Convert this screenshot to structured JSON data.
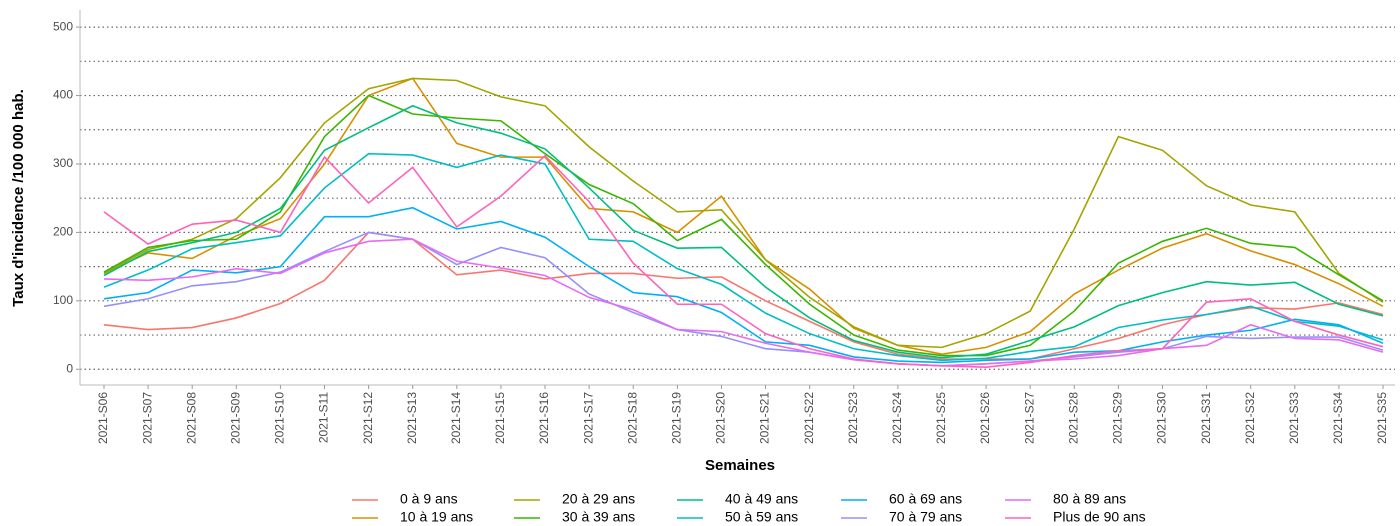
{
  "chart_data": {
    "type": "line",
    "x_label": "Semaines",
    "y_label": "Taux d'incidence /100 000 hab.",
    "categories": [
      "2021-S06",
      "2021-S07",
      "2021-S08",
      "2021-S09",
      "2021-S10",
      "2021-S11",
      "2021-S12",
      "2021-S13",
      "2021-S14",
      "2021-S15",
      "2021-S16",
      "2021-S17",
      "2021-S18",
      "2021-S19",
      "2021-S20",
      "2021-S21",
      "2021-S22",
      "2021-S23",
      "2021-S24",
      "2021-S25",
      "2021-S26",
      "2021-S27",
      "2021-S28",
      "2021-S29",
      "2021-S30",
      "2021-S31",
      "2021-S32",
      "2021-S33",
      "2021-S34",
      "2021-S35"
    ],
    "series": [
      {
        "name": "0 à 9 ans",
        "color": "#F8766D",
        "values": [
          65,
          58,
          61,
          75,
          96,
          130,
          200,
          190,
          138,
          145,
          132,
          140,
          140,
          133,
          135,
          100,
          70,
          40,
          22,
          15,
          15,
          15,
          30,
          45,
          65,
          80,
          90,
          88,
          97,
          80
        ]
      },
      {
        "name": "10 à 19 ans",
        "color": "#D89000",
        "values": [
          140,
          170,
          162,
          195,
          220,
          300,
          400,
          425,
          330,
          310,
          310,
          235,
          230,
          200,
          253,
          160,
          117,
          60,
          35,
          22,
          32,
          55,
          110,
          145,
          177,
          198,
          173,
          153,
          125,
          92
        ]
      },
      {
        "name": "20 à 29 ans",
        "color": "#A3A500",
        "values": [
          140,
          175,
          190,
          220,
          280,
          360,
          410,
          425,
          422,
          398,
          385,
          325,
          275,
          230,
          233,
          160,
          105,
          62,
          35,
          32,
          52,
          85,
          205,
          340,
          320,
          268,
          240,
          230,
          140,
          98
        ]
      },
      {
        "name": "30 à 39 ans",
        "color": "#39B600",
        "values": [
          142,
          178,
          188,
          190,
          230,
          340,
          400,
          373,
          367,
          363,
          315,
          270,
          242,
          188,
          219,
          153,
          95,
          50,
          28,
          20,
          20,
          35,
          85,
          155,
          187,
          206,
          184,
          178,
          138,
          100
        ]
      },
      {
        "name": "40 à 49 ans",
        "color": "#00BF7D",
        "values": [
          137,
          172,
          185,
          200,
          235,
          320,
          353,
          385,
          360,
          345,
          322,
          265,
          203,
          177,
          178,
          120,
          75,
          42,
          25,
          17,
          22,
          42,
          62,
          93,
          112,
          128,
          123,
          127,
          95,
          78
        ]
      },
      {
        "name": "50 à 59 ans",
        "color": "#00BFC4",
        "values": [
          120,
          145,
          176,
          185,
          195,
          265,
          315,
          313,
          295,
          313,
          300,
          190,
          187,
          147,
          124,
          82,
          52,
          30,
          20,
          13,
          16,
          26,
          33,
          61,
          72,
          80,
          92,
          70,
          63,
          43
        ]
      },
      {
        "name": "60 à 69 ans",
        "color": "#00B0F6",
        "values": [
          103,
          112,
          145,
          141,
          150,
          223,
          223,
          236,
          205,
          216,
          193,
          150,
          112,
          106,
          83,
          40,
          35,
          18,
          12,
          10,
          13,
          15,
          25,
          27,
          40,
          50,
          57,
          73,
          65,
          38
        ]
      },
      {
        "name": "70 à 79 ans",
        "color": "#9590FF",
        "values": [
          92,
          103,
          122,
          128,
          142,
          172,
          200,
          190,
          153,
          178,
          163,
          110,
          83,
          58,
          48,
          30,
          25,
          14,
          8,
          5,
          8,
          12,
          18,
          25,
          30,
          48,
          45,
          47,
          47,
          28
        ]
      },
      {
        "name": "80 à 89 ans",
        "color": "#E76BF3",
        "values": [
          132,
          130,
          135,
          147,
          140,
          170,
          187,
          190,
          158,
          148,
          137,
          105,
          87,
          58,
          55,
          38,
          25,
          14,
          8,
          5,
          8,
          12,
          15,
          20,
          30,
          35,
          65,
          45,
          43,
          25
        ]
      },
      {
        "name": "Plus de 90 ans",
        "color": "#FF62BC",
        "values": [
          230,
          183,
          212,
          218,
          200,
          310,
          243,
          295,
          208,
          253,
          312,
          245,
          155,
          95,
          95,
          52,
          30,
          15,
          8,
          5,
          3,
          10,
          20,
          27,
          30,
          98,
          103,
          70,
          50,
          33
        ]
      }
    ],
    "ylim": [
      -23,
      525
    ],
    "yticks": [
      0,
      100,
      200,
      300,
      400,
      500
    ],
    "grid": true,
    "minor_grid": true,
    "legend_position": "bottom"
  }
}
